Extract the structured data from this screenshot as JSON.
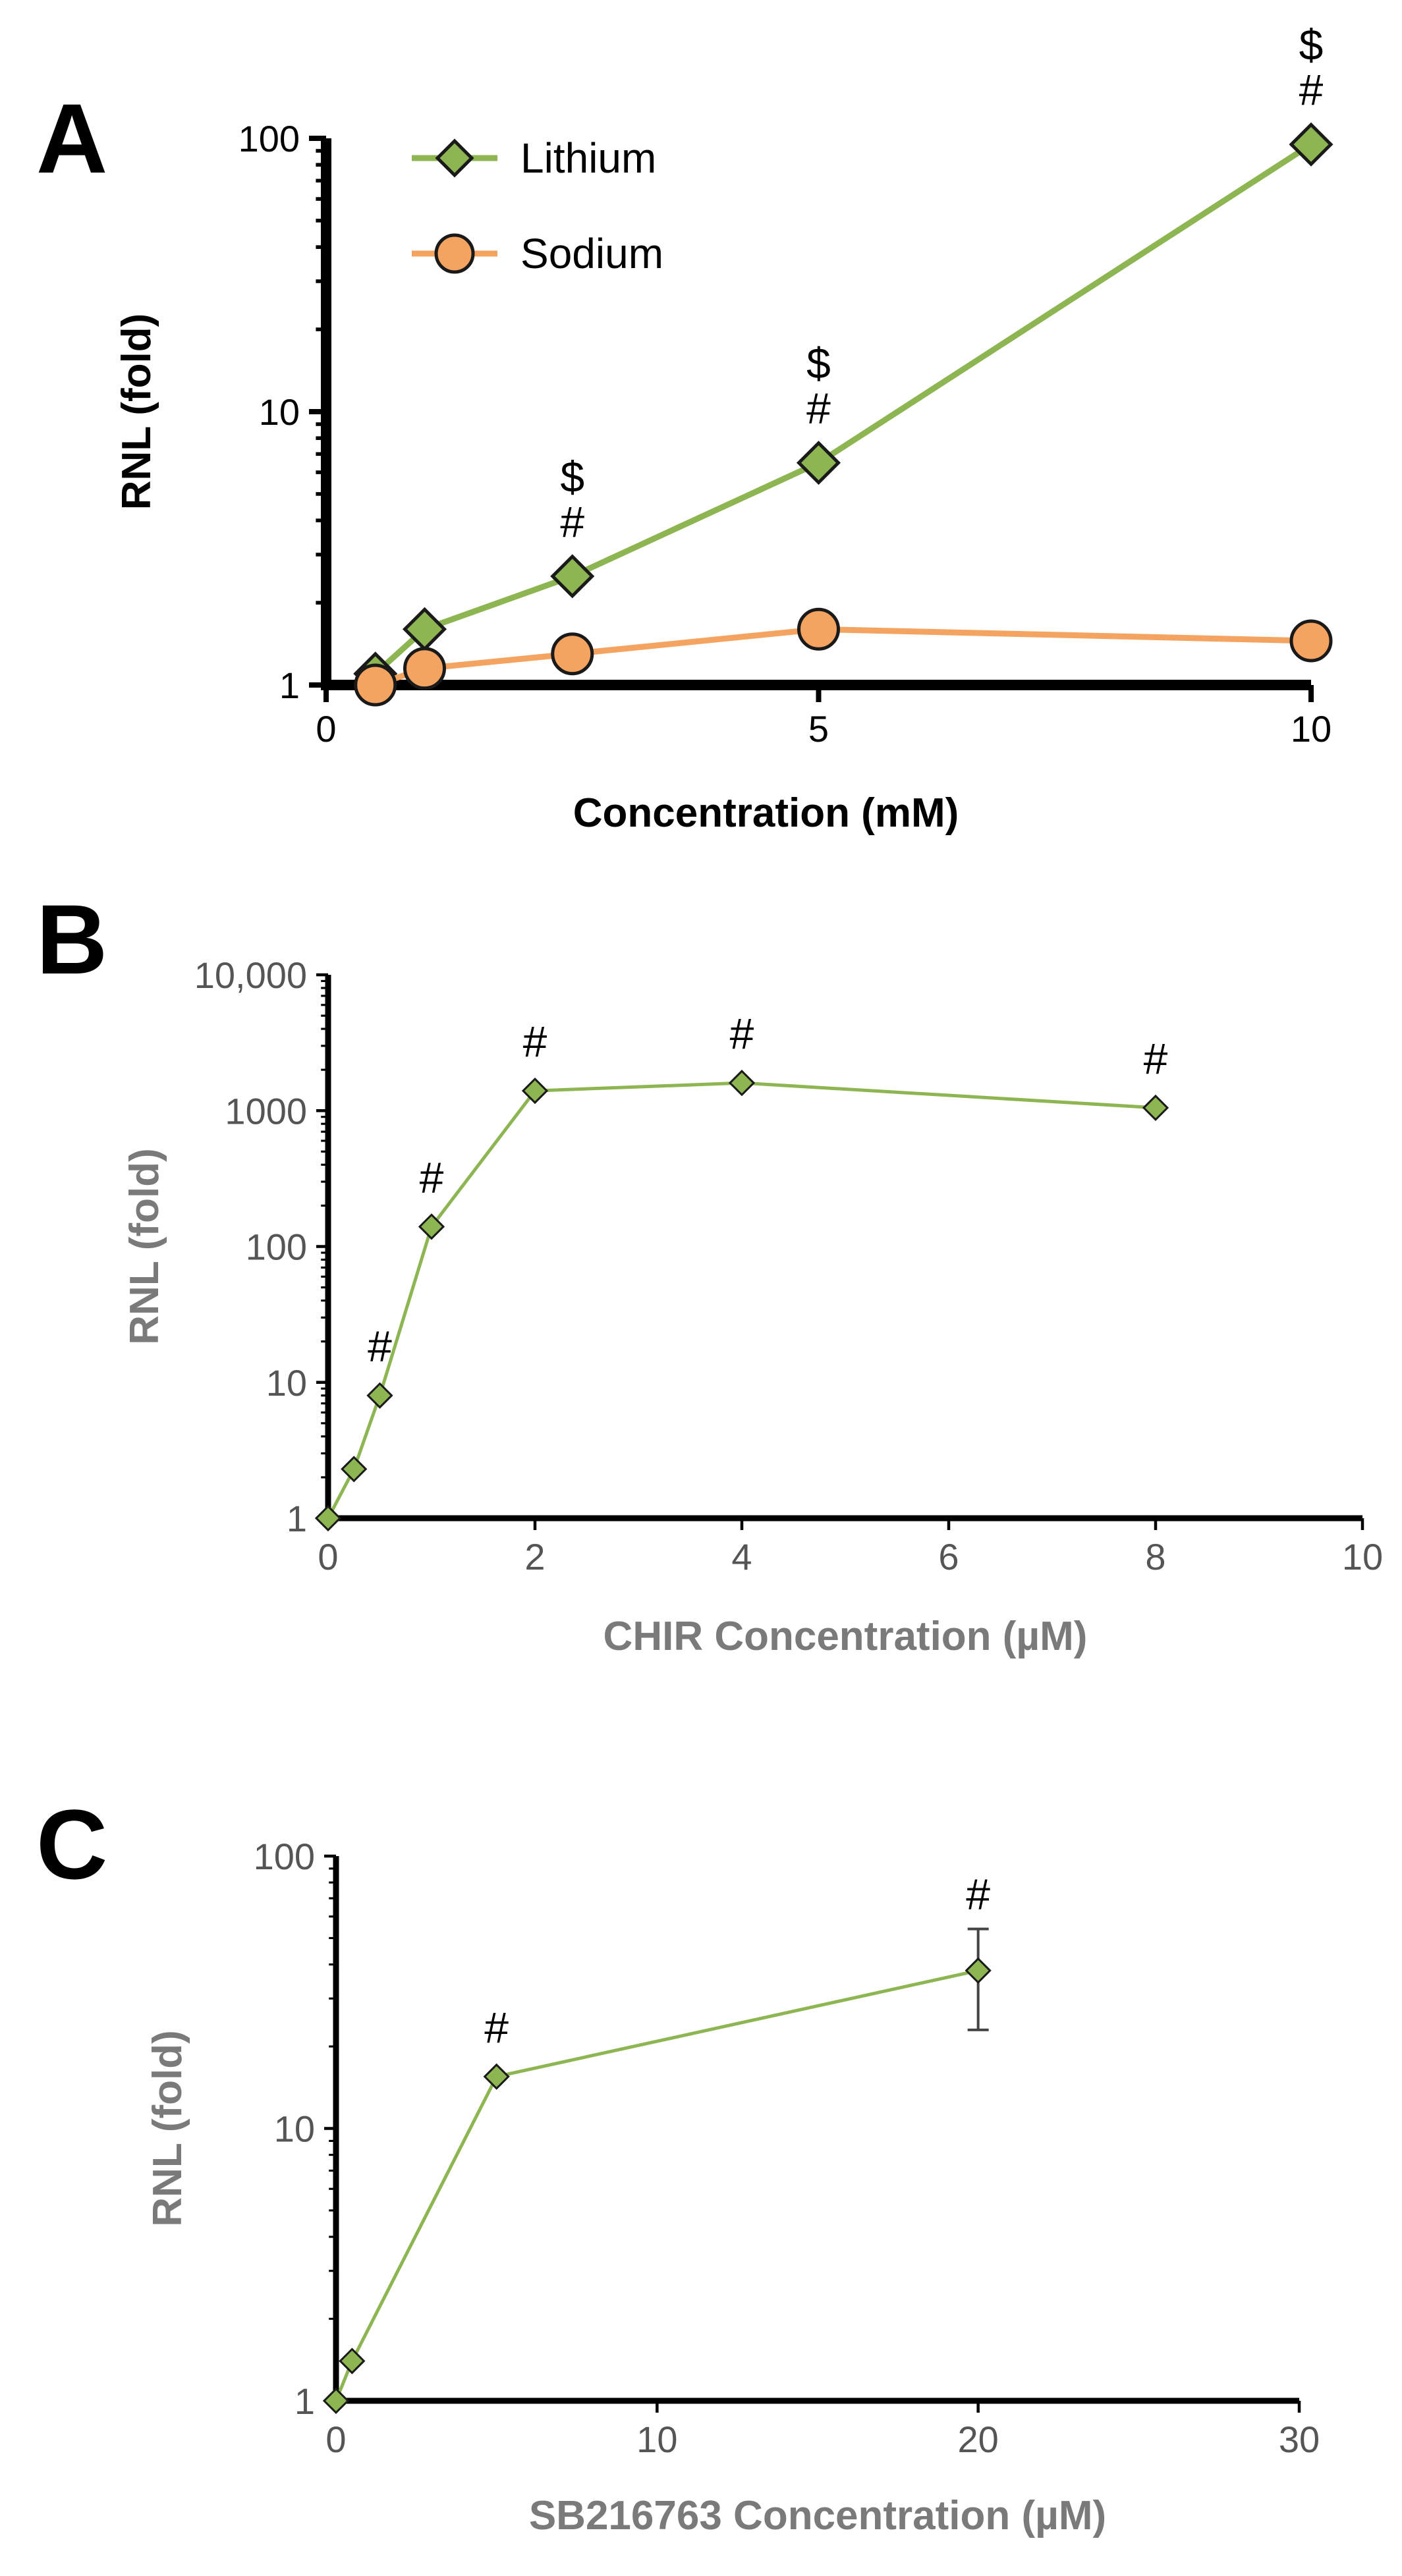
{
  "chart_data": [
    {
      "panel": "A",
      "type": "line",
      "xlabel": "Concentration (mM)",
      "ylabel": "RNL (fold)",
      "xlim": [
        0,
        10
      ],
      "ylim": [
        1,
        100
      ],
      "yscale": "log",
      "xticks": [
        "0",
        "5",
        "10"
      ],
      "yticks": [
        "1",
        "10",
        "100"
      ],
      "legend_position": "top-left",
      "colors": {
        "Lithium": "#8db552",
        "Sodium": "#f4a460"
      },
      "series": [
        {
          "name": "Lithium",
          "marker": "diamond",
          "x": [
            0.5,
            1,
            2.5,
            5,
            10
          ],
          "y": [
            1.1,
            1.6,
            2.5,
            6.5,
            95
          ],
          "annotations": [
            {
              "x": 2.5,
              "lines": [
                "$",
                "#"
              ]
            },
            {
              "x": 5,
              "lines": [
                "$",
                "#"
              ]
            },
            {
              "x": 10,
              "lines": [
                "$",
                "#"
              ]
            }
          ]
        },
        {
          "name": "Sodium",
          "marker": "circle",
          "x": [
            0.5,
            1,
            2.5,
            5,
            10
          ],
          "y": [
            1.0,
            1.15,
            1.3,
            1.6,
            1.45
          ]
        }
      ]
    },
    {
      "panel": "B",
      "type": "line",
      "xlabel": "CHIR Concentration (µM)",
      "ylabel": "RNL (fold)",
      "xlim": [
        0,
        10
      ],
      "ylim": [
        1,
        10000
      ],
      "yscale": "log",
      "xticks": [
        "0",
        "2",
        "4",
        "6",
        "8",
        "10"
      ],
      "yticks": [
        "1",
        "10",
        "100",
        "1000",
        "10,000"
      ],
      "colors": {
        "line": "#8db552"
      },
      "series": [
        {
          "name": "CHIR",
          "marker": "diamond",
          "x": [
            0,
            0.25,
            0.5,
            1,
            2,
            4,
            8
          ],
          "y": [
            1,
            2.3,
            8,
            140,
            1400,
            1600,
            1050
          ],
          "annotations": [
            {
              "x": 0.5,
              "lines": [
                "#"
              ]
            },
            {
              "x": 1,
              "lines": [
                "#"
              ]
            },
            {
              "x": 2,
              "lines": [
                "#"
              ]
            },
            {
              "x": 4,
              "lines": [
                "#"
              ]
            },
            {
              "x": 8,
              "lines": [
                "#"
              ]
            }
          ]
        }
      ]
    },
    {
      "panel": "C",
      "type": "line",
      "xlabel": "SB216763 Concentration (µM)",
      "ylabel": "RNL (fold)",
      "xlim": [
        0,
        30
      ],
      "ylim": [
        1,
        100
      ],
      "yscale": "log",
      "xticks": [
        "0",
        "10",
        "20",
        "30"
      ],
      "yticks": [
        "1",
        "10",
        "100"
      ],
      "colors": {
        "line": "#8db552"
      },
      "series": [
        {
          "name": "SB216763",
          "marker": "diamond",
          "x": [
            0,
            0.5,
            5,
            20
          ],
          "y": [
            1,
            1.4,
            15.5,
            38
          ],
          "error_low": [
            null,
            null,
            null,
            23
          ],
          "error_high": [
            null,
            null,
            null,
            54
          ],
          "annotations": [
            {
              "x": 5,
              "lines": [
                "#"
              ]
            },
            {
              "x": 20,
              "lines": [
                "#"
              ]
            }
          ]
        }
      ]
    }
  ]
}
